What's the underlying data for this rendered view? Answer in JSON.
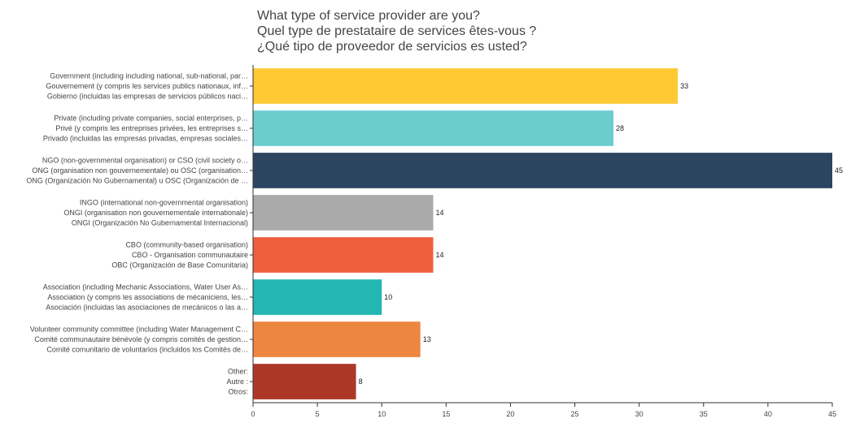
{
  "chart_data": {
    "type": "bar",
    "orientation": "horizontal",
    "title": [
      "What type of service provider are you?",
      "Quel type de prestataire de services êtes-vous ?",
      "¿Qué tipo de proveedor de servicios es usted?"
    ],
    "categories": [
      [
        "Government (including including national, sub-national, par…",
        "Gouvernement (y compris les services publics nationaux, inf…",
        "Gobierno (incluidas las empresas de servicios públicos naci…"
      ],
      [
        "Private (including private companies, social enterprises, p…",
        "Privé (y compris les entreprises privées, les entreprises s…",
        "Privado (incluidas las empresas privadas, empresas sociales…"
      ],
      [
        "NGO (non-governmental organisation) or CSO (civil society o…",
        "ONG (organisation non gouvernementale) ou OSC (organisation…",
        "ONG (Organización No Gubernamental) u OSC (Organización de …"
      ],
      [
        "INGO (international non-governmental organisation)",
        "ONGI (organisation non gouvernementale internationale)",
        "ONGI (Organización No Gubernamental Internacional)"
      ],
      [
        "CBO (community-based organisation)",
        "CBO - Organisation communautaire",
        "OBC (Organización de Base Comunitaria)"
      ],
      [
        "Association (including Mechanic Associations, Water User As…",
        "Association (y compris les associations de mécaniciens, les…",
        "Asociación (incluidas las asociaciones de mecánicos o las a…"
      ],
      [
        "Volunteer community committee (including Water Management C…",
        "Comité communautaire bénévole (y compris comités de gestion…",
        "Comité comunitario de voluntarios (incluidos los Comités de…"
      ],
      [
        "Other:",
        "Autre :",
        "Otros:"
      ]
    ],
    "values": [
      33,
      28,
      45,
      14,
      14,
      10,
      13,
      8
    ],
    "colors": [
      "#ffc933",
      "#6ccdce",
      "#2d4460",
      "#aaaaaa",
      "#f05f3d",
      "#23b6b3",
      "#ed8641",
      "#ad3726"
    ],
    "xlim": [
      0,
      45
    ],
    "xticks": [
      0,
      5,
      10,
      15,
      20,
      25,
      30,
      35,
      40,
      45
    ],
    "xlabel": "",
    "ylabel": "",
    "grid": false
  }
}
